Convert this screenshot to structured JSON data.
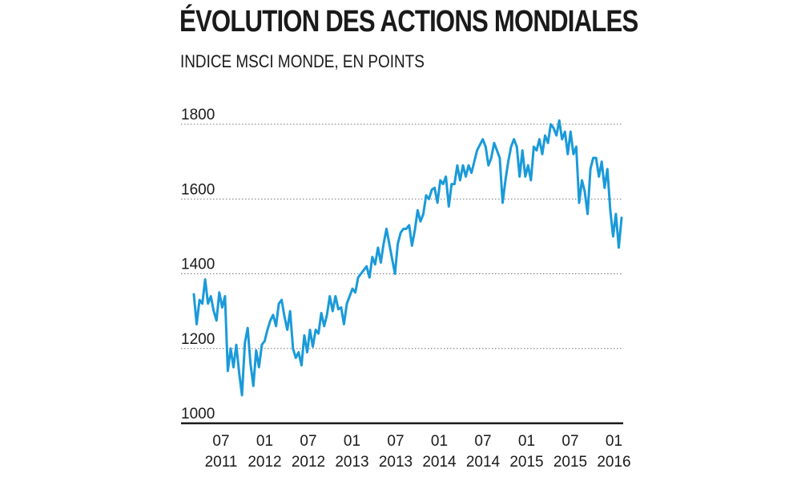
{
  "chart_data": {
    "type": "line",
    "title": "ÉVOLUTION DES ACTIONS MONDIALES",
    "subtitle": "INDICE MSCI MONDE, EN POINTS",
    "ylim": [
      1000,
      1800
    ],
    "yticks": [
      "1000",
      "1200",
      "1400",
      "1600",
      "1800"
    ],
    "xticks": [
      {
        "month": "07",
        "year": "2011"
      },
      {
        "month": "01",
        "year": "2012"
      },
      {
        "month": "07",
        "year": "2012"
      },
      {
        "month": "01",
        "year": "2013"
      },
      {
        "month": "07",
        "year": "2013"
      },
      {
        "month": "01",
        "year": "2014"
      },
      {
        "month": "07",
        "year": "2014"
      },
      {
        "month": "01",
        "year": "2015"
      },
      {
        "month": "07",
        "year": "2015"
      },
      {
        "month": "01",
        "year": "2016"
      }
    ],
    "grid": true,
    "line_color": "#1a9ad9",
    "series": [
      {
        "values": [
          1345,
          1265,
          1330,
          1320,
          1385,
          1320,
          1340,
          1300,
          1275,
          1350,
          1310,
          1340,
          1140,
          1200,
          1150,
          1210,
          1135,
          1075,
          1215,
          1255,
          1160,
          1100,
          1195,
          1150,
          1210,
          1220,
          1250,
          1275,
          1290,
          1260,
          1320,
          1330,
          1285,
          1250,
          1300,
          1200,
          1175,
          1190,
          1155,
          1235,
          1190,
          1250,
          1205,
          1250,
          1240,
          1295,
          1260,
          1290,
          1340,
          1300,
          1340,
          1305,
          1310,
          1265,
          1320,
          1340,
          1360,
          1350,
          1390,
          1400,
          1410,
          1420,
          1390,
          1445,
          1425,
          1470,
          1430,
          1480,
          1520,
          1480,
          1440,
          1400,
          1480,
          1510,
          1520,
          1520,
          1530,
          1475,
          1515,
          1570,
          1540,
          1560,
          1610,
          1600,
          1625,
          1630,
          1590,
          1650,
          1640,
          1660,
          1580,
          1640,
          1640,
          1690,
          1650,
          1690,
          1660,
          1690,
          1670,
          1700,
          1730,
          1745,
          1760,
          1740,
          1690,
          1710,
          1750,
          1730,
          1710,
          1590,
          1650,
          1700,
          1740,
          1760,
          1740,
          1660,
          1730,
          1660,
          1690,
          1650,
          1740,
          1730,
          1760,
          1720,
          1770,
          1750,
          1800,
          1790,
          1770,
          1810,
          1760,
          1780,
          1720,
          1780,
          1720,
          1740,
          1590,
          1650,
          1620,
          1560,
          1680,
          1710,
          1710,
          1660,
          1700,
          1630,
          1680,
          1570,
          1500,
          1560,
          1470,
          1550
        ]
      }
    ]
  }
}
